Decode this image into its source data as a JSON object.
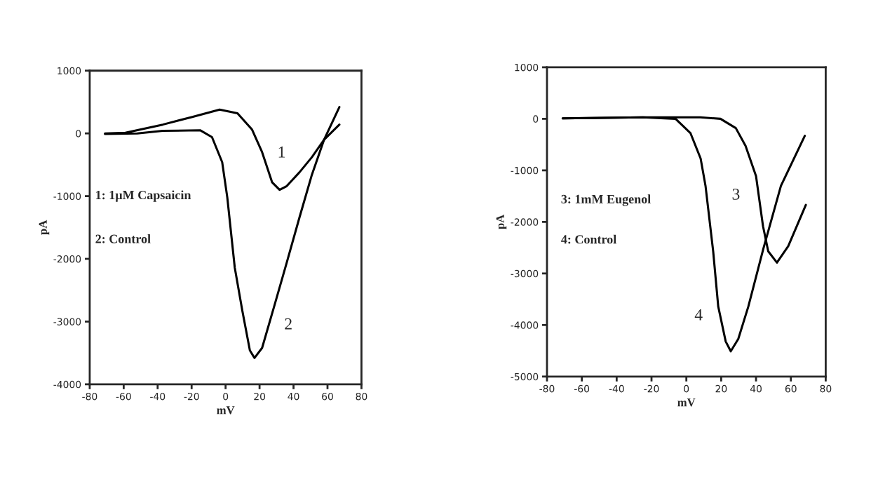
{
  "chart_data": [
    {
      "type": "line",
      "xlabel": "mV",
      "ylabel": "pA",
      "xlim": [
        -80,
        80
      ],
      "xticks": [
        -80,
        -60,
        -40,
        -20,
        0,
        20,
        40,
        60,
        80
      ],
      "ylim": [
        -4000,
        1000
      ],
      "yticks": [
        -4000,
        -3000,
        -2000,
        -1000,
        0,
        1000
      ],
      "grid": false,
      "series": [
        {
          "color": "#000000",
          "x": [
            -71,
            -59,
            -37,
            -20,
            -3.5,
            7,
            15.6,
            21.5,
            27.4,
            31.8,
            36,
            43.5,
            50.8,
            58,
            67
          ],
          "values": [
            0,
            10,
            140,
            260,
            380,
            320,
            60,
            -300,
            -780,
            -900,
            -840,
            -620,
            -380,
            -100,
            140
          ]
        },
        {
          "color": "#000000",
          "x": [
            -71,
            -52,
            -37,
            -15,
            -8,
            -2,
            1,
            5.4,
            9.8,
            14.3,
            17,
            21.5,
            28.8,
            36,
            43.5,
            50.8,
            58,
            67
          ],
          "values": [
            -10,
            0,
            40,
            50,
            -60,
            -460,
            -1020,
            -2140,
            -2820,
            -3460,
            -3580,
            -3420,
            -2740,
            -2060,
            -1340,
            -660,
            -100,
            420
          ]
        }
      ],
      "annotations": [
        "1: 1µM Capsaicin",
        "2: Control",
        "1",
        "2"
      ]
    },
    {
      "type": "line",
      "xlabel": "mV",
      "ylabel": "pA",
      "xlim": [
        -80,
        80
      ],
      "xticks": [
        -80,
        -60,
        -40,
        -20,
        0,
        20,
        40,
        60,
        80
      ],
      "ylim": [
        -5000,
        1000
      ],
      "yticks": [
        -5000,
        -4000,
        -3000,
        -2000,
        -1000,
        0,
        1000
      ],
      "grid": false,
      "series": [
        {
          "color": "#000000",
          "x": [
            -71,
            -25,
            8,
            19.6,
            28.4,
            34,
            40,
            44,
            47,
            52,
            58.5,
            68.6
          ],
          "values": [
            10,
            30,
            30,
            0,
            -180,
            -525,
            -1110,
            -2080,
            -2570,
            -2790,
            -2470,
            -1670
          ]
        },
        {
          "color": "#000000",
          "x": [
            -71,
            -25,
            -6.2,
            2.4,
            8.2,
            11,
            15.4,
            18.3,
            22.6,
            25.5,
            29.8,
            35.6,
            44.2,
            54.3,
            68
          ],
          "values": [
            10,
            30,
            0,
            -280,
            -770,
            -1300,
            -2570,
            -3640,
            -4320,
            -4510,
            -4270,
            -3640,
            -2520,
            -1300,
            -330
          ]
        }
      ],
      "annotations": [
        "3: 1mM Eugenol",
        "4: Control",
        "3",
        "4"
      ]
    }
  ]
}
